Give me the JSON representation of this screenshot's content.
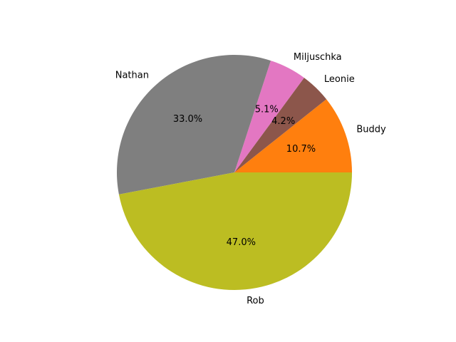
{
  "chart_data": {
    "type": "pie",
    "labels": [
      "Buddy",
      "Leonie",
      "Miljuschka",
      "Nathan",
      "Rob"
    ],
    "values": [
      10.7,
      4.2,
      5.1,
      33.0,
      47.0
    ],
    "percent_labels": [
      "10.7%",
      "4.2%",
      "5.1%",
      "33.0%",
      "47.0%"
    ],
    "colors": [
      "#ff7f0e",
      "#8c564b",
      "#e377c2",
      "#7f7f7f",
      "#bcbd22"
    ],
    "start_angle_deg": 0,
    "direction": "counterclockwise",
    "title": "",
    "legend": "none"
  }
}
